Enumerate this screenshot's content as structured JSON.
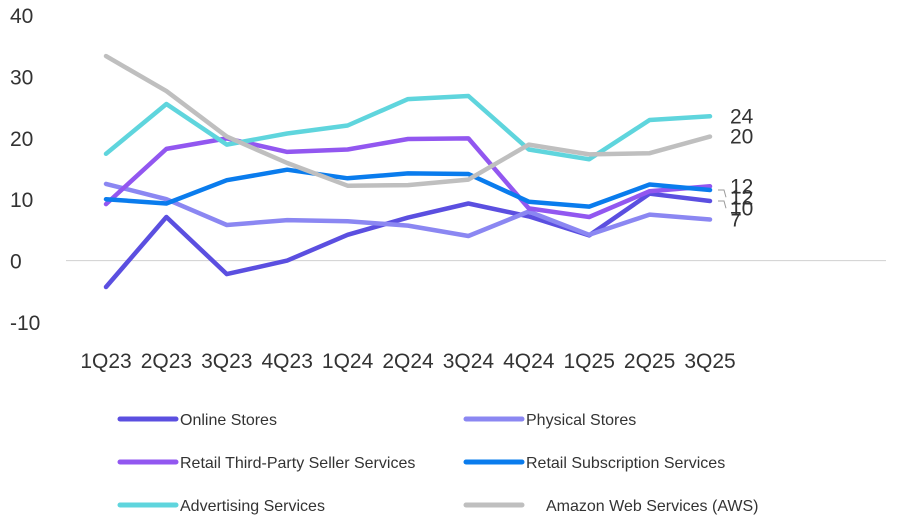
{
  "chart_data": {
    "type": "line",
    "title": "",
    "xlabel": "",
    "ylabel": "",
    "ylim": [
      -10,
      40
    ],
    "yticks": [
      -10,
      0,
      10,
      20,
      30,
      40
    ],
    "grid": false,
    "legend_position": "bottom",
    "categories": [
      "1Q23",
      "2Q23",
      "3Q23",
      "4Q23",
      "1Q24",
      "2Q24",
      "3Q24",
      "4Q24",
      "1Q25",
      "2Q25",
      "3Q25"
    ],
    "series": [
      {
        "name": "Online Stores",
        "color": "#5b4fe0",
        "values": [
          -4.3,
          7.1,
          -2.2,
          0.0,
          4.2,
          7.0,
          9.3,
          7.2,
          4.1,
          10.9,
          9.7
        ],
        "end_label": "10"
      },
      {
        "name": "Physical Stores",
        "color": "#8b87f2",
        "values": [
          12.5,
          10.0,
          5.8,
          6.6,
          6.4,
          5.7,
          4.0,
          8.0,
          4.2,
          7.5,
          6.7
        ],
        "end_label": "7"
      },
      {
        "name": "Retail Third-Party Seller Services",
        "color": "#9257f0",
        "values": [
          9.2,
          18.2,
          19.9,
          17.7,
          18.1,
          19.8,
          19.9,
          8.5,
          7.1,
          11.3,
          12.1
        ],
        "end_label": "12"
      },
      {
        "name": "Retail Subscription Services",
        "color": "#0a7ced",
        "values": [
          10.0,
          9.3,
          13.1,
          14.8,
          13.4,
          14.2,
          14.1,
          9.6,
          8.8,
          12.4,
          11.5
        ],
        "end_label": "12"
      },
      {
        "name": "Advertising Services",
        "color": "#5fd5dd",
        "values": [
          17.4,
          25.5,
          18.9,
          20.7,
          22.0,
          26.3,
          26.8,
          18.1,
          16.5,
          22.9,
          23.5
        ],
        "end_label": "24"
      },
      {
        "name": "Amazon Web Services (AWS)",
        "color": "#bfbfbf",
        "values": [
          33.3,
          27.6,
          20.2,
          15.9,
          12.2,
          12.3,
          13.2,
          18.9,
          17.3,
          17.5,
          20.2
        ],
        "end_label": "20"
      }
    ]
  }
}
